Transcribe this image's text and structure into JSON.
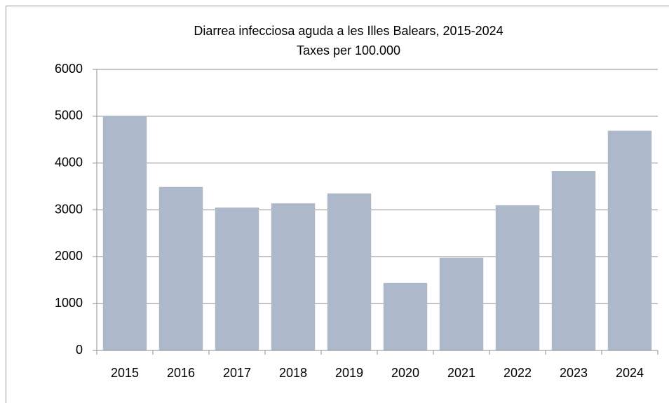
{
  "chart_data": {
    "type": "bar",
    "title": "Diarrea infecciosa aguda a les Illes Balears, 2015-2024",
    "subtitle": "Taxes per 100.000",
    "categories": [
      "2015",
      "2016",
      "2017",
      "2018",
      "2019",
      "2020",
      "2021",
      "2022",
      "2023",
      "2024"
    ],
    "values": [
      5010,
      3490,
      3050,
      3140,
      3350,
      1440,
      1980,
      3100,
      3830,
      4690
    ],
    "color": "#adb9ca",
    "ylim": [
      0,
      6000
    ],
    "yticks": [
      0,
      1000,
      2000,
      3000,
      4000,
      5000,
      6000
    ],
    "grid": true
  }
}
